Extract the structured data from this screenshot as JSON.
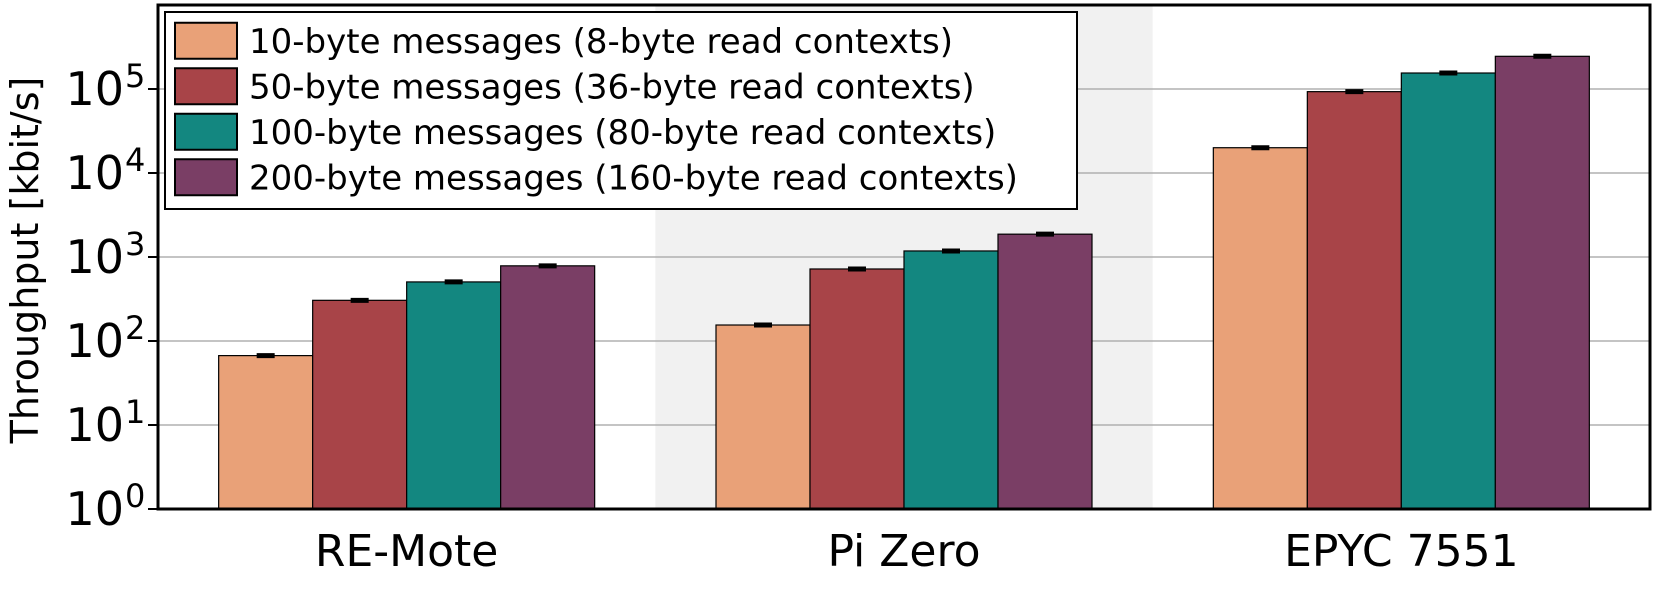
{
  "chart_data": {
    "type": "bar",
    "title": "",
    "xlabel": "",
    "ylabel": "Throughput [kbit/s]",
    "yscale": "log",
    "ylim": [
      1,
      1000000
    ],
    "grid": "horizontal",
    "legend_position": "top-left",
    "categories": [
      "RE-Mote",
      "Pi Zero",
      "EPYC 7551"
    ],
    "shaded_category": "Pi Zero",
    "y_tick_labels": [
      {
        "value": 1,
        "base": "10",
        "exp": "0"
      },
      {
        "value": 10,
        "base": "10",
        "exp": "1"
      },
      {
        "value": 100,
        "base": "10",
        "exp": "2"
      },
      {
        "value": 1000,
        "base": "10",
        "exp": "3"
      },
      {
        "value": 10000,
        "base": "10",
        "exp": "4"
      },
      {
        "value": 100000,
        "base": "10",
        "exp": "5"
      }
    ],
    "series": [
      {
        "name": "10-byte messages (8-byte read contexts)",
        "color": "#E9A178",
        "values": [
          67,
          155,
          20000
        ]
      },
      {
        "name": "50-byte messages (36-byte read contexts)",
        "color": "#A84448",
        "values": [
          305,
          720,
          93000
        ]
      },
      {
        "name": "100-byte messages (80-byte read contexts)",
        "color": "#138780",
        "values": [
          505,
          1180,
          155000
        ]
      },
      {
        "name": "200-byte messages (160-byte read contexts)",
        "color": "#7A3E65",
        "values": [
          785,
          1870,
          245000
        ]
      }
    ]
  }
}
